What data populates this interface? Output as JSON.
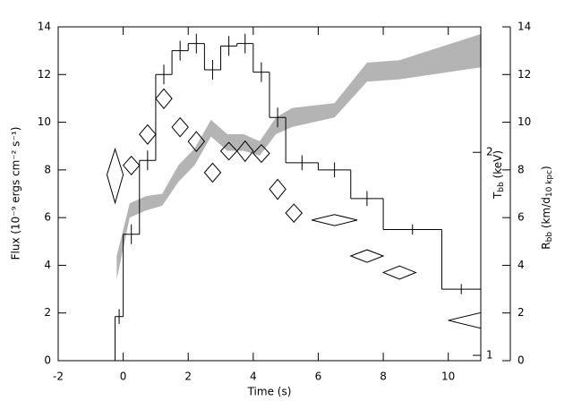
{
  "chart_data": {
    "type": "combo",
    "xlabel": "Time (s)",
    "ylabel": "Flux (10⁻⁹ ergs cm⁻² s⁻¹)",
    "y3label": {
      "main": "T",
      "sub": "bb",
      "rest": " (keV)"
    },
    "y2label": {
      "main": "R",
      "sub": "bb",
      "rest": " (km/d",
      "sub2": "10 kpc",
      "end": ")"
    },
    "xlim": [
      -2,
      11
    ],
    "xticks": [
      -2,
      0,
      2,
      4,
      6,
      8,
      10
    ],
    "ylim": [
      0,
      14
    ],
    "yticks": [
      0,
      2,
      4,
      6,
      8,
      10,
      12,
      14
    ],
    "y2lim": [
      0,
      14
    ],
    "y2ticks": [
      0,
      2,
      4,
      6,
      8,
      10,
      12,
      14
    ],
    "y3lim": [
      0.982,
      3.07
    ],
    "y3ticks": [
      1,
      2
    ],
    "y3log": true,
    "series": [
      {
        "type": "band",
        "axis": "y2",
        "color": "#b4b4b4",
        "x": [
          -0.2,
          0.2,
          0.7,
          1.2,
          1.7,
          2.2,
          2.7,
          3.2,
          3.7,
          4.2,
          4.7,
          5.2,
          6.5,
          7.5,
          8.5,
          11
        ],
        "lower": [
          3.4,
          6.0,
          6.3,
          6.5,
          7.5,
          8.2,
          9.4,
          8.8,
          8.8,
          8.6,
          9.5,
          9.8,
          10.2,
          11.7,
          11.8,
          12.3
        ],
        "upper": [
          4.4,
          6.6,
          6.9,
          7.0,
          8.2,
          8.9,
          10.1,
          9.5,
          9.5,
          9.2,
          10.2,
          10.6,
          10.8,
          12.5,
          12.6,
          13.7
        ]
      },
      {
        "type": "step",
        "color": "#000000",
        "bins": [
          -0.25,
          0,
          0.5,
          1,
          1.5,
          2,
          2.5,
          3,
          3.5,
          4,
          4.5,
          5,
          6,
          7,
          8,
          9.8,
          11
        ],
        "values": [
          1.85,
          5.3,
          8.4,
          12.0,
          13.0,
          13.3,
          12.2,
          13.2,
          13.3,
          12.1,
          10.2,
          8.3,
          8.0,
          6.8,
          5.5,
          3.0
        ],
        "errors": [
          0.2,
          0.3,
          0.3,
          0.3,
          0.3,
          0.3,
          0.3,
          0.3,
          0.3,
          0.3,
          0.3,
          0.2,
          0.2,
          0.2,
          0.1,
          0.1
        ]
      },
      {
        "type": "diamond",
        "axis": "y3",
        "color": "#000000",
        "x": [
          -0.25,
          0.25,
          0.75,
          1.25,
          1.75,
          2.25,
          2.75,
          3.25,
          3.75,
          4.25,
          4.75,
          5.25,
          6.5,
          7.5,
          8.5,
          11
        ],
        "xerr": [
          0.25,
          0.25,
          0.25,
          0.25,
          0.25,
          0.25,
          0.25,
          0.25,
          0.25,
          0.25,
          0.25,
          0.25,
          0.7,
          0.5,
          0.5,
          1.0
        ],
        "values": [
          1.853,
          1.913,
          2.127,
          2.403,
          2.18,
          2.076,
          1.867,
          2.009,
          2.009,
          1.993,
          1.764,
          1.626,
          1.587,
          1.404,
          1.327,
          1.127
        ],
        "errors": [
          0.17,
          0.06,
          0.07,
          0.08,
          0.07,
          0.07,
          0.06,
          0.06,
          0.07,
          0.06,
          0.06,
          0.05,
          0.03,
          0.03,
          0.03,
          0.03
        ]
      }
    ]
  }
}
